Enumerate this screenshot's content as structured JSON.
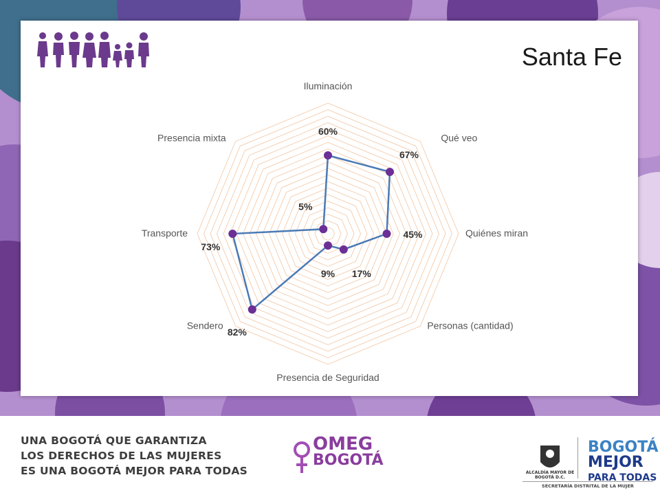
{
  "slide": {
    "title": "Santa Fe"
  },
  "chart_data": {
    "type": "radar",
    "categories": [
      "Iluminación",
      "Qué veo",
      "Quiénes miran",
      "Personas (cantidad)",
      "Presencia de Seguridad",
      "Sendero",
      "Transporte",
      "Presencia mixta"
    ],
    "values": [
      60,
      67,
      45,
      17,
      9,
      82,
      73,
      5
    ],
    "value_labels": [
      "60%",
      "67%",
      "45%",
      "17%",
      "9%",
      "82%",
      "73%",
      "5%"
    ],
    "range": [
      0,
      100
    ],
    "series_color": "#4a7ab5",
    "marker_color": "#6b2f96",
    "grid_color": "#f2c4a0"
  },
  "footer": {
    "slogan_lines": [
      "UNA BOGOTÁ QUE GARANTIZA",
      "LOS DERECHOS DE LAS MUJERES",
      "ES UNA BOGOTÁ MEJOR PARA TODAS"
    ],
    "omeg_line1": "OMEG",
    "omeg_line2": "BOGOTÁ",
    "alcaldia": "ALCALDÍA MAYOR DE BOGOTÁ D.C.",
    "bogota_line1": "BOGOTÁ",
    "bogota_line2": "MEJOR",
    "bogota_line3": "PARA TODAS",
    "secretaria": "SECRETARÍA DISTRITAL DE LA MUJER"
  },
  "colors": {
    "purple_dark": "#6b3a8c",
    "purple_light": "#c7a6d6",
    "teal": "#4a8a9a"
  }
}
